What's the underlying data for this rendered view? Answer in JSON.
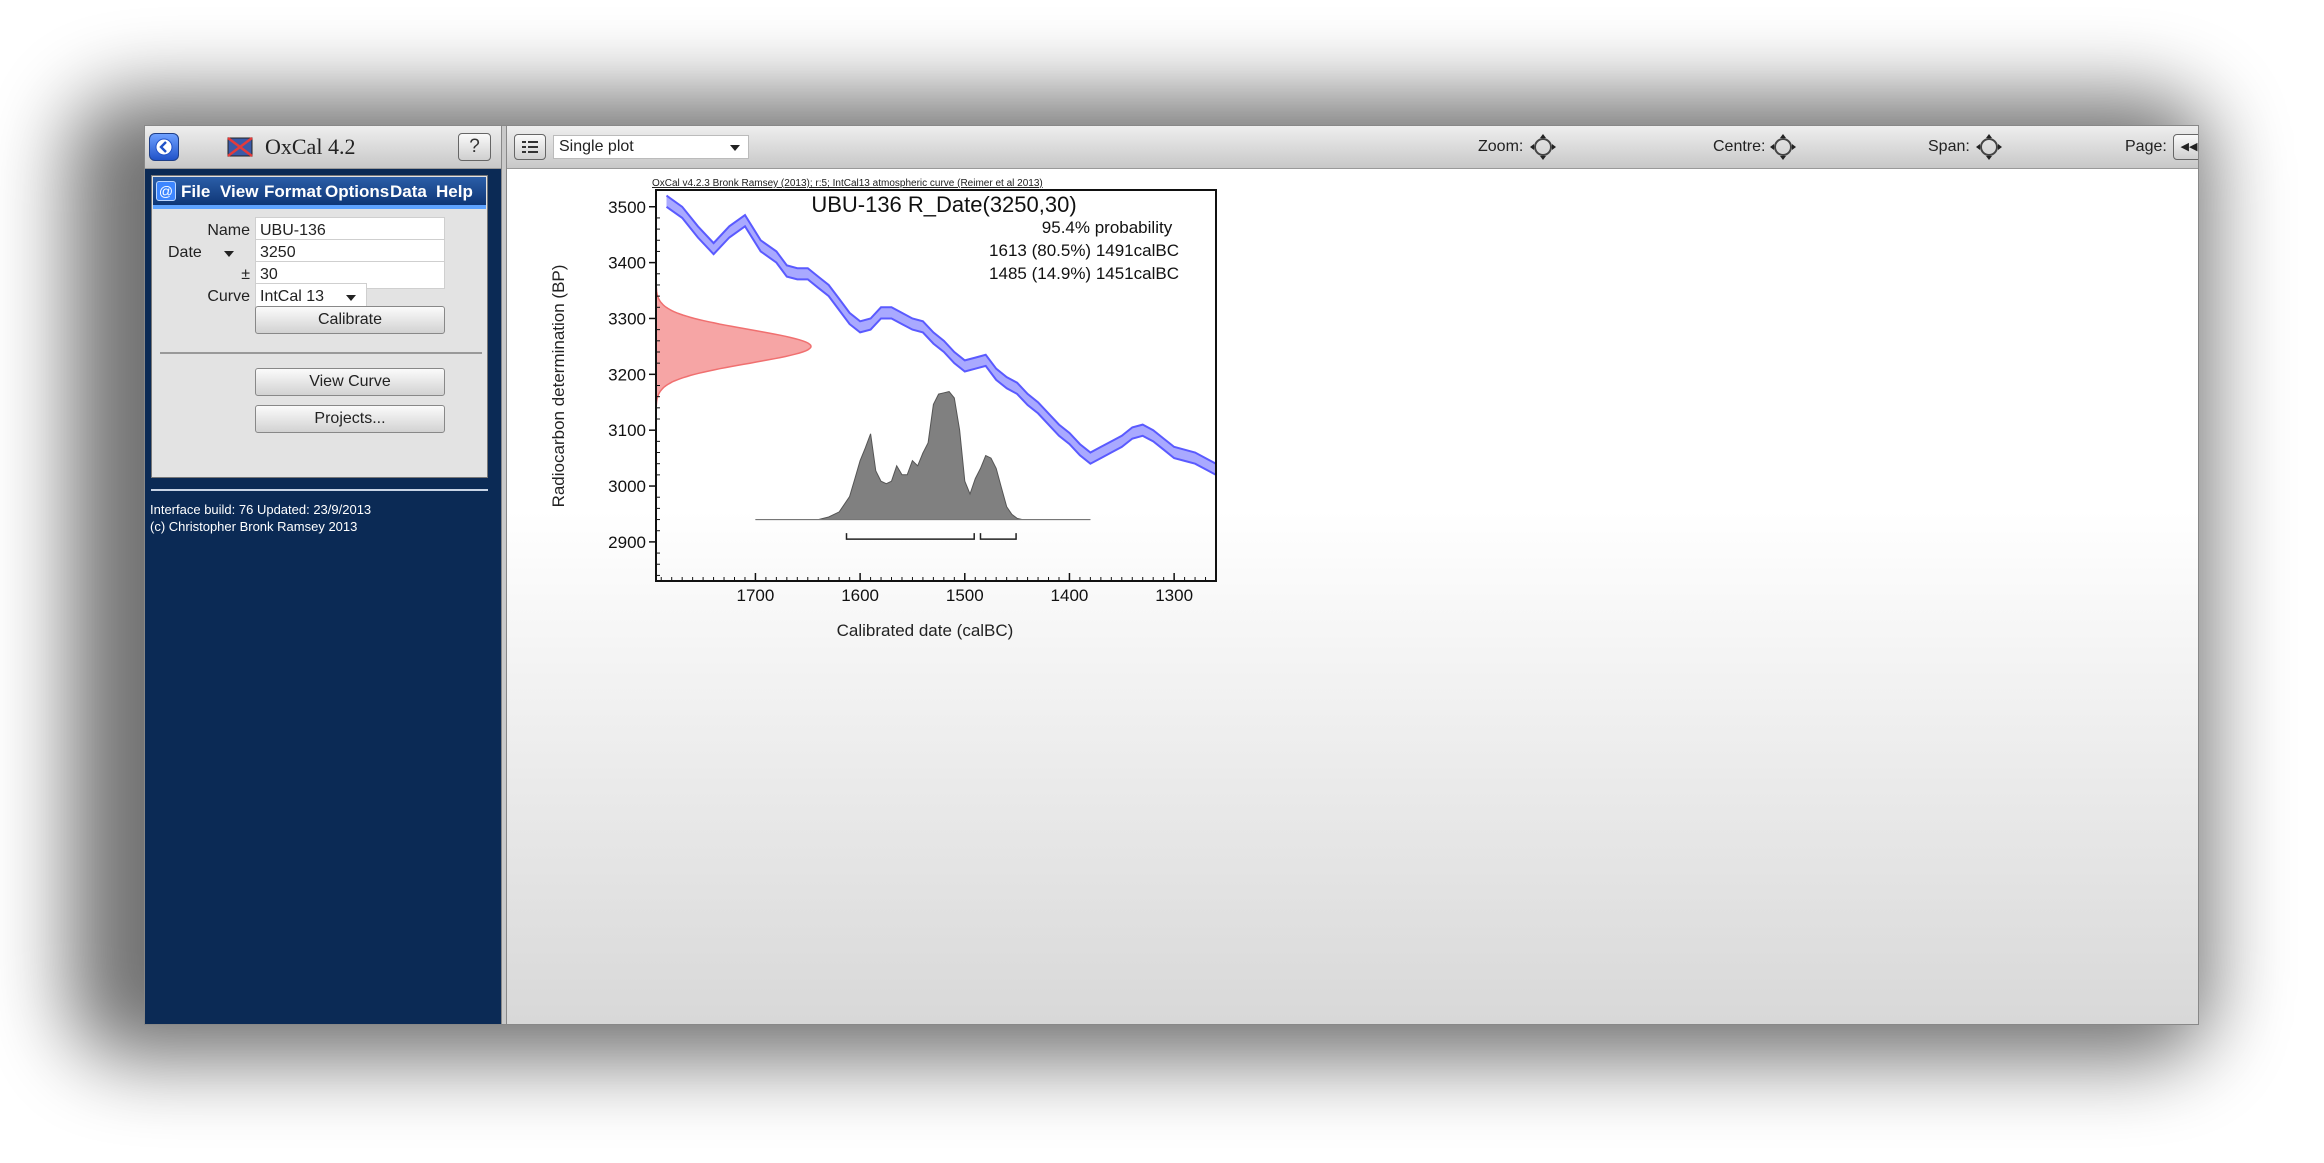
{
  "window": {
    "app_title": "OxCal 4.2"
  },
  "sidebar": {
    "menu": [
      "File",
      "View",
      "Format",
      "Options",
      "Data",
      "Help"
    ],
    "name_label": "Name",
    "name_value": "UBU-136",
    "date_type": "Date",
    "date_value": "3250",
    "error_label": "±",
    "error_value": "30",
    "curve_label": "Curve",
    "curve_value": "IntCal 13",
    "calibrate_label": "Calibrate",
    "view_curve_label": "View Curve",
    "projects_label": "Projects...",
    "info_line1": "Interface build: 76 Updated: 23/9/2013",
    "info_line2": "(c) Christopher Bronk Ramsey 2013"
  },
  "toolbar": {
    "plot_mode": "Single plot",
    "zoom_label": "Zoom:",
    "centre_label": "Centre:",
    "span_label": "Span:",
    "page_label": "Page:"
  },
  "plot": {
    "header": "OxCal v4.2.3 Bronk Ramsey (2013); r:5; IntCal13 atmospheric curve (Reimer et al 2013)",
    "title": "UBU-136 R_Date(3250,30)",
    "probability_heading": "95.4% probability",
    "range1": "1613 (80.5%) 1491calBC",
    "range2": "1485 (14.9%) 1451calBC",
    "ylabel": "Radiocarbon determination (BP)",
    "xlabel": "Calibrated date (calBC)",
    "yticks": [
      "3500",
      "3400",
      "3300",
      "3200",
      "3100",
      "3000",
      "2900"
    ],
    "xticks": [
      "1700",
      "1600",
      "1500",
      "1400",
      "1300"
    ]
  },
  "chart_data": {
    "type": "line",
    "x_reversed": true,
    "xlim": [
      1795,
      1260
    ],
    "ylim": [
      2830,
      3530
    ],
    "curve_color": "#5a5aff",
    "measurement_color": "#f07070",
    "posterior_color": "#808080",
    "calibration_curve": {
      "x": [
        1785,
        1770,
        1755,
        1740,
        1725,
        1710,
        1695,
        1680,
        1670,
        1660,
        1650,
        1640,
        1630,
        1620,
        1610,
        1600,
        1590,
        1580,
        1570,
        1560,
        1550,
        1540,
        1530,
        1520,
        1510,
        1500,
        1490,
        1480,
        1470,
        1460,
        1450,
        1440,
        1430,
        1420,
        1410,
        1400,
        1390,
        1380,
        1370,
        1360,
        1350,
        1340,
        1330,
        1320,
        1310,
        1300,
        1290,
        1280,
        1270,
        1260
      ],
      "y": [
        3510,
        3490,
        3455,
        3425,
        3455,
        3475,
        3430,
        3410,
        3385,
        3380,
        3380,
        3365,
        3350,
        3325,
        3300,
        3285,
        3290,
        3310,
        3310,
        3300,
        3290,
        3285,
        3265,
        3250,
        3230,
        3215,
        3220,
        3225,
        3200,
        3185,
        3175,
        3155,
        3140,
        3120,
        3100,
        3085,
        3065,
        3050,
        3060,
        3070,
        3080,
        3095,
        3100,
        3090,
        3075,
        3060,
        3055,
        3050,
        3040,
        3030
      ]
    },
    "measurement": {
      "mean": 3250,
      "sigma": 30
    },
    "posterior": {
      "x": [
        1700,
        1660,
        1640,
        1630,
        1620,
        1610,
        1605,
        1600,
        1595,
        1590,
        1585,
        1580,
        1575,
        1570,
        1565,
        1560,
        1555,
        1550,
        1545,
        1540,
        1535,
        1530,
        1525,
        1520,
        1515,
        1510,
        1505,
        1500,
        1495,
        1490,
        1485,
        1480,
        1475,
        1470,
        1465,
        1460,
        1455,
        1450,
        1445,
        1440,
        1380
      ],
      "y": [
        0,
        0,
        0,
        0.02,
        0.06,
        0.18,
        0.32,
        0.46,
        0.56,
        0.67,
        0.38,
        0.3,
        0.28,
        0.3,
        0.42,
        0.35,
        0.35,
        0.46,
        0.42,
        0.52,
        0.6,
        0.9,
        0.98,
        0.99,
        1.0,
        0.95,
        0.7,
        0.3,
        0.2,
        0.32,
        0.4,
        0.5,
        0.48,
        0.4,
        0.25,
        0.1,
        0.04,
        0.01,
        0,
        0,
        0
      ]
    },
    "ranges_95": [
      [
        1613,
        1491
      ],
      [
        1485,
        1451
      ]
    ]
  }
}
